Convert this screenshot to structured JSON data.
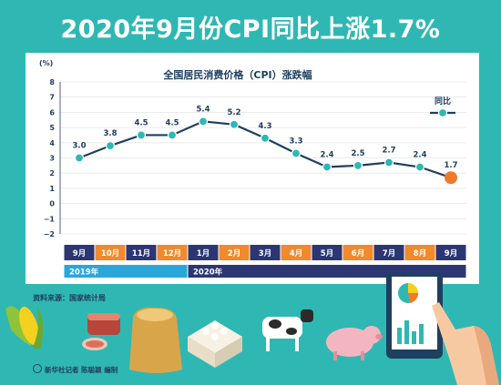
{
  "headline": "2020年9月份CPI同比上涨1.7%",
  "source": "资料来源：国家统计局",
  "credit": "新华社记者 陈聪颖 编制",
  "icons": [
    "corn-icon",
    "ham-icon",
    "grain-sack-icon",
    "eggs-icon",
    "cow-icon",
    "pig-icon",
    "tablet-chart-icon",
    "pointing-hand-icon"
  ],
  "chart_data": {
    "type": "line",
    "title": "全国居民消费价格（CPI）涨跌幅",
    "ylabel": "(%)",
    "ylim": [
      -2,
      8
    ],
    "yticks": [
      "8",
      "7",
      "6",
      "5",
      "4",
      "3",
      "2",
      "1",
      "0",
      "−1",
      "−2"
    ],
    "categories": [
      "9月",
      "10月",
      "11月",
      "12月",
      "1月",
      "2月",
      "3月",
      "4月",
      "5月",
      "6月",
      "7月",
      "8月",
      "9月"
    ],
    "year_groups": [
      {
        "label": "2019年",
        "start": 0,
        "end": 3
      },
      {
        "label": "2020年",
        "start": 4,
        "end": 12
      }
    ],
    "series": [
      {
        "name": "同比",
        "values": [
          3.0,
          3.8,
          4.5,
          4.5,
          5.4,
          5.2,
          4.3,
          3.3,
          2.4,
          2.5,
          2.7,
          2.4,
          1.7
        ]
      }
    ],
    "data_labels": [
      "3.0",
      "3.8",
      "4.5",
      "4.5",
      "5.4",
      "5.2",
      "4.3",
      "3.3",
      "2.4",
      "2.5",
      "2.7",
      "2.4",
      "1.7"
    ],
    "grid": true,
    "legend": "top-right",
    "colors": {
      "line": "#1f3f60",
      "marker": "#2fb8b3",
      "highlight": "#f07a2a",
      "month_dark": "#2c3673",
      "month_orange": "#f08a2c",
      "year_2019": "#2aa7d9",
      "year_2020": "#2c3673"
    }
  }
}
